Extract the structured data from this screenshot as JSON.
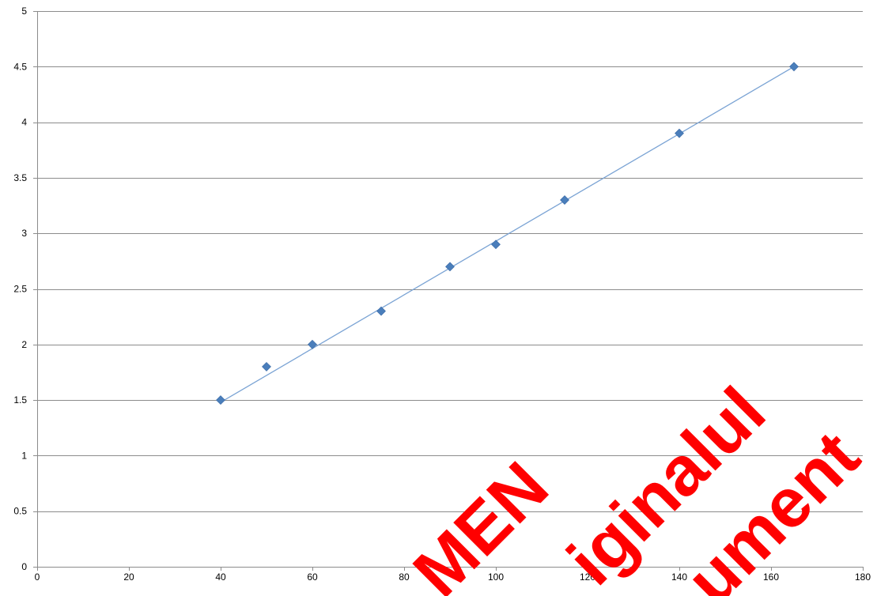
{
  "chart_data": {
    "type": "scatter",
    "title": "",
    "xlabel": "",
    "ylabel": "",
    "xlim": [
      0,
      180
    ],
    "ylim": [
      0,
      5
    ],
    "x_ticks": [
      0,
      20,
      40,
      60,
      80,
      100,
      120,
      140,
      160,
      180
    ],
    "y_ticks": [
      0,
      0.5,
      1,
      1.5,
      2,
      2.5,
      3,
      3.5,
      4,
      4.5,
      5
    ],
    "x_tick_labels": [
      "0",
      "20",
      "40",
      "60",
      "80",
      "100",
      "120",
      "140",
      "160",
      "180"
    ],
    "y_tick_labels": [
      "0",
      "0.5",
      "1",
      "1.5",
      "2",
      "2.5",
      "3",
      "3.5",
      "4",
      "4.5",
      "5"
    ],
    "grid": "horizontal",
    "legend": "none",
    "series": [
      {
        "marker": "diamond",
        "color": "#4a7ebb",
        "points": [
          {
            "x": 40,
            "y": 1.5
          },
          {
            "x": 50,
            "y": 1.8
          },
          {
            "x": 60,
            "y": 2.0
          },
          {
            "x": 75,
            "y": 2.3
          },
          {
            "x": 90,
            "y": 2.7
          },
          {
            "x": 100,
            "y": 2.9
          },
          {
            "x": 115,
            "y": 3.3
          },
          {
            "x": 140,
            "y": 3.9
          },
          {
            "x": 165,
            "y": 4.5
          }
        ]
      }
    ],
    "trendline": {
      "type": "linear",
      "color": "#7aa3d4",
      "from": {
        "x": 40,
        "y": 1.48
      },
      "to": {
        "x": 165,
        "y": 4.5
      }
    }
  },
  "watermark": {
    "words": [
      "MEN",
      "iginalul",
      "ument"
    ],
    "color": "#ff0000"
  }
}
